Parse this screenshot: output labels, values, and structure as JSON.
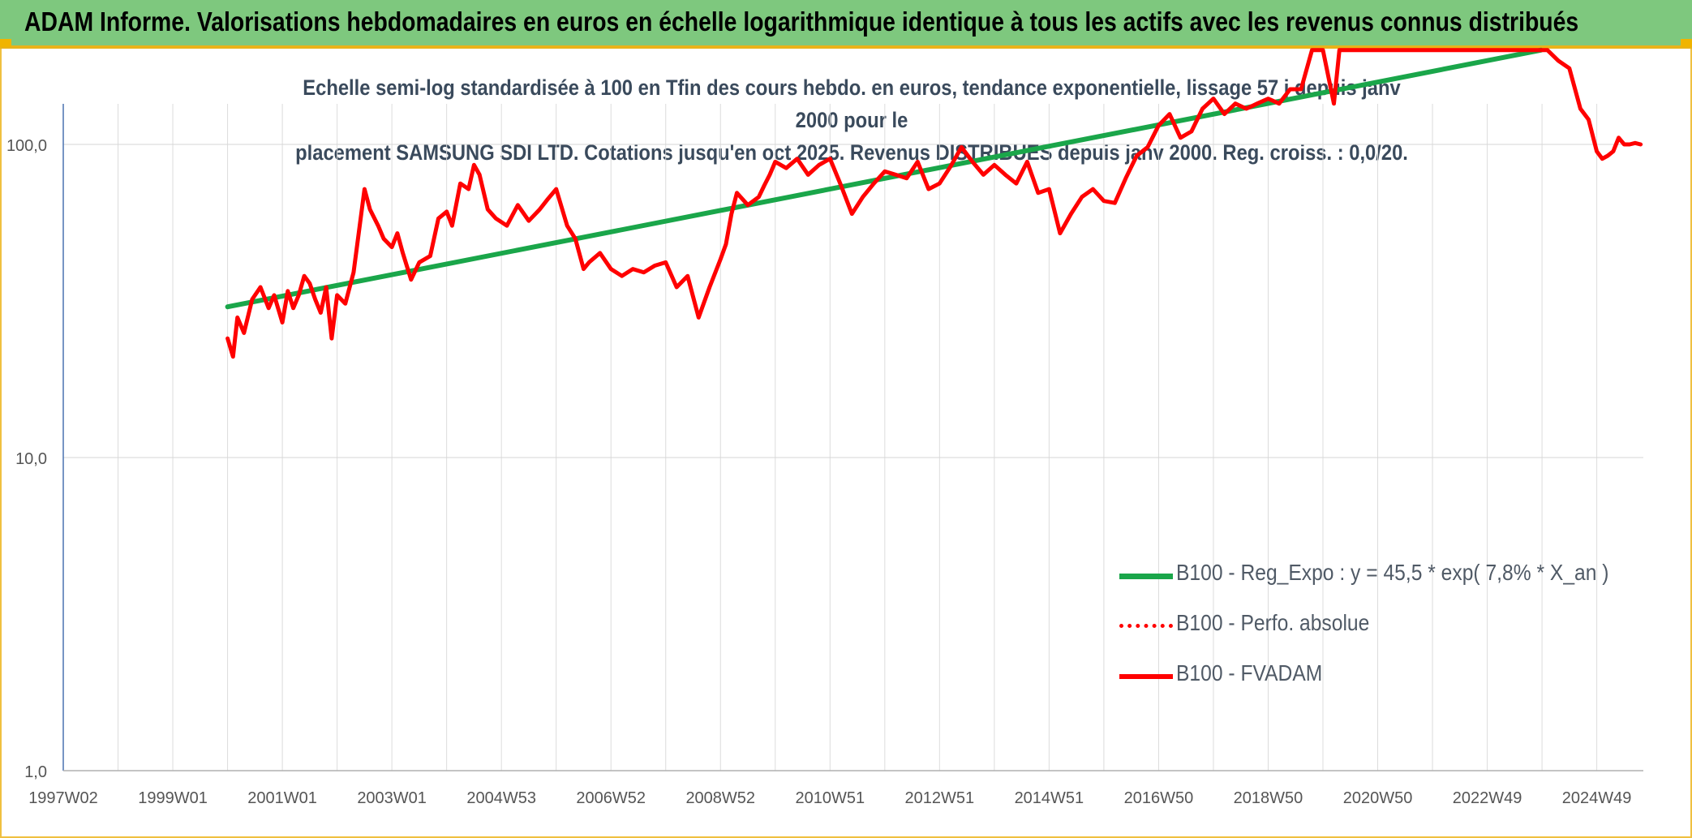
{
  "header": {
    "title": "ADAM Informe. Valorisations hebdomadaires en euros en échelle logarithmique identique à tous les actifs avec les revenus connus distribués"
  },
  "chart_data": {
    "type": "line",
    "title_line1": "Echelle semi-log standardisée à 100 en Tfin des cours hebdo. en euros, tendance exponentielle, lissage 57 j depuis janv 2000 pour le",
    "title_line2": "placement SAMSUNG SDI LTD. Cotations jusqu'en oct 2025. Revenus DISTRIBUES depuis janv 2000. Reg. croiss. : 0,0/20.",
    "xlabel": "",
    "ylabel": "",
    "y_scale": "log",
    "ylim": [
      1,
      200
    ],
    "y_ticks": [
      {
        "value": 1,
        "label": "1,0"
      },
      {
        "value": 10,
        "label": "10,0"
      },
      {
        "value": 100,
        "label": "100,0"
      }
    ],
    "xlim": [
      1997.0,
      2025.85
    ],
    "x_ticks": [
      {
        "value": 1997.0,
        "label": "1997W02"
      },
      {
        "value": 1999.0,
        "label": "1999W01"
      },
      {
        "value": 2001.0,
        "label": "2001W01"
      },
      {
        "value": 2003.0,
        "label": "2003W01"
      },
      {
        "value": 2005.0,
        "label": "2004W53"
      },
      {
        "value": 2007.0,
        "label": "2006W52"
      },
      {
        "value": 2009.0,
        "label": "2008W52"
      },
      {
        "value": 2011.0,
        "label": "2010W51"
      },
      {
        "value": 2013.0,
        "label": "2012W51"
      },
      {
        "value": 2015.0,
        "label": "2014W51"
      },
      {
        "value": 2017.0,
        "label": "2016W50"
      },
      {
        "value": 2019.0,
        "label": "2018W50"
      },
      {
        "value": 2021.0,
        "label": "2020W50"
      },
      {
        "value": 2023.0,
        "label": "2022W49"
      },
      {
        "value": 2025.0,
        "label": "2024W49"
      }
    ],
    "grid": true,
    "legend_position": "bottom-right",
    "series": [
      {
        "name": "B100 - Reg_Expo : y = 45,5 * exp( 7,8% *  X_an )",
        "color": "#1aa64a",
        "style": "solid",
        "x": [
          2000.0,
          2023.98
        ],
        "y": [
          30.3,
          200
        ]
      },
      {
        "name": "B100 - Perfo. absolue",
        "color": "#ff0000",
        "style": "dotted",
        "x": [],
        "y": []
      },
      {
        "name": "B100 - FVADAM",
        "color": "#ff0000",
        "style": "solid",
        "x": [
          2000.0,
          2000.1,
          2000.18,
          2000.3,
          2000.45,
          2000.6,
          2000.75,
          2000.85,
          2001.0,
          2001.1,
          2001.2,
          2001.3,
          2001.4,
          2001.5,
          2001.6,
          2001.7,
          2001.8,
          2001.9,
          2002.0,
          2002.15,
          2002.3,
          2002.5,
          2002.6,
          2002.75,
          2002.85,
          2003.0,
          2003.1,
          2003.2,
          2003.35,
          2003.5,
          2003.7,
          2003.85,
          2004.0,
          2004.1,
          2004.25,
          2004.4,
          2004.5,
          2004.6,
          2004.75,
          2004.9,
          2005.1,
          2005.3,
          2005.5,
          2005.7,
          2005.85,
          2006.0,
          2006.2,
          2006.35,
          2006.5,
          2006.6,
          2006.8,
          2007.0,
          2007.2,
          2007.4,
          2007.6,
          2007.8,
          2008.0,
          2008.2,
          2008.4,
          2008.6,
          2008.8,
          2009.0,
          2009.1,
          2009.2,
          2009.3,
          2009.5,
          2009.7,
          2009.8,
          2009.9,
          2010.0,
          2010.2,
          2010.4,
          2010.6,
          2010.8,
          2011.0,
          2011.2,
          2011.4,
          2011.6,
          2011.8,
          2012.0,
          2012.2,
          2012.4,
          2012.6,
          2012.8,
          2013.0,
          2013.2,
          2013.4,
          2013.6,
          2013.8,
          2014.0,
          2014.2,
          2014.4,
          2014.6,
          2014.8,
          2015.0,
          2015.2,
          2015.4,
          2015.6,
          2015.8,
          2016.0,
          2016.2,
          2016.4,
          2016.6,
          2016.8,
          2017.0,
          2017.2,
          2017.4,
          2017.6,
          2017.8,
          2018.0,
          2018.2,
          2018.4,
          2018.6,
          2018.8,
          2019.0,
          2019.2,
          2019.4,
          2019.6,
          2019.8,
          2020.0,
          2020.2,
          2020.3,
          2020.45,
          2020.6,
          2020.75,
          2024.1,
          2024.3,
          2024.5,
          2024.7,
          2024.85,
          2025.0,
          2025.1,
          2025.2,
          2025.3,
          2025.4,
          2025.5,
          2025.6,
          2025.7,
          2025.8
        ],
        "y": [
          24,
          21,
          28,
          25,
          32,
          35,
          30,
          33,
          27,
          34,
          30,
          33,
          38,
          36,
          32,
          29,
          35,
          24,
          33,
          31,
          39,
          72,
          62,
          55,
          50,
          47,
          52,
          45,
          37,
          42,
          44,
          58,
          61,
          55,
          75,
          72,
          86,
          80,
          62,
          58,
          55,
          64,
          57,
          62,
          67,
          72,
          55,
          50,
          40,
          42,
          45,
          40,
          38,
          40,
          39,
          41,
          42,
          35,
          38,
          28,
          35,
          43,
          48,
          60,
          70,
          64,
          68,
          74,
          80,
          88,
          84,
          90,
          80,
          86,
          90,
          74,
          60,
          68,
          75,
          82,
          80,
          78,
          88,
          72,
          75,
          85,
          98,
          88,
          80,
          86,
          80,
          75,
          88,
          70,
          72,
          52,
          60,
          68,
          72,
          66,
          65,
          78,
          92,
          98,
          115,
          125,
          105,
          110,
          130,
          140,
          125,
          135,
          130,
          135,
          140,
          135,
          150,
          150,
          200,
          200,
          135,
          200,
          200,
          200,
          200,
          200,
          185,
          175,
          130,
          120,
          95,
          90,
          92,
          95,
          105,
          100,
          100,
          101,
          100
        ]
      }
    ]
  }
}
